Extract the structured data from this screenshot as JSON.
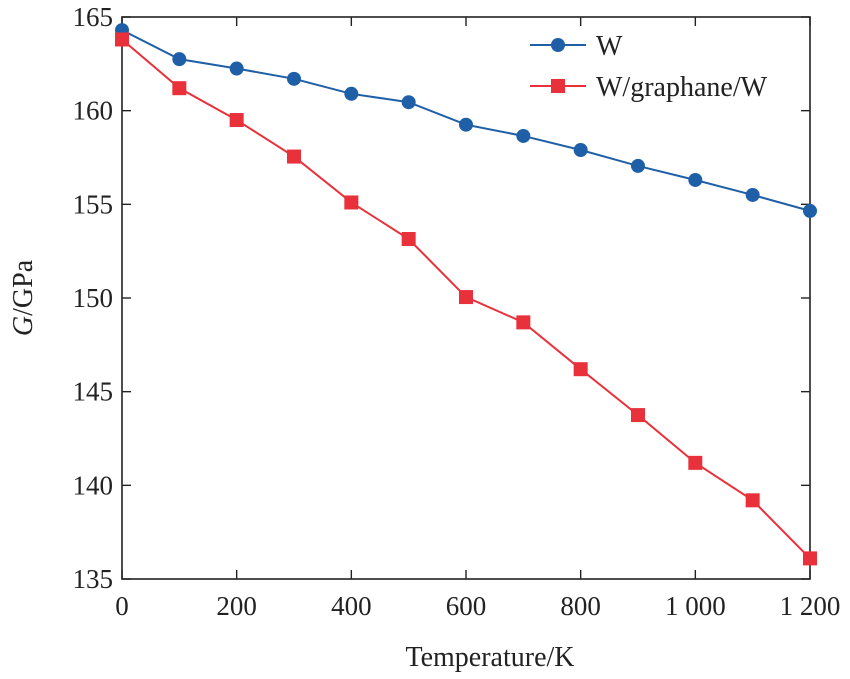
{
  "chart_data": {
    "type": "line",
    "x": [
      0,
      100,
      200,
      300,
      400,
      500,
      600,
      700,
      800,
      900,
      1000,
      1100,
      1200
    ],
    "xlabel": "Temperature/K",
    "ylabel_italic": "G",
    "ylabel_rest": "/GPa",
    "xlim": [
      0,
      1200
    ],
    "ylim": [
      135,
      165
    ],
    "xticks": [
      0,
      200,
      400,
      600,
      800,
      1000,
      1200
    ],
    "xtick_labels": [
      "0",
      "200",
      "400",
      "600",
      "800",
      "1 000",
      "1 200"
    ],
    "yticks": [
      135,
      140,
      145,
      150,
      155,
      160,
      165
    ],
    "ytick_labels": [
      "135",
      "140",
      "145",
      "150",
      "155",
      "160",
      "165"
    ],
    "grid": false,
    "legend_position": "top-right",
    "series": [
      {
        "name": "W",
        "marker": "circle",
        "color": "#1f5fa8",
        "values": [
          164.3,
          162.75,
          162.25,
          161.7,
          160.9,
          160.45,
          159.25,
          158.65,
          157.9,
          157.05,
          156.3,
          155.5,
          154.65
        ]
      },
      {
        "name": "W/graphane/W",
        "marker": "square",
        "color": "#e8313b",
        "values": [
          163.8,
          161.2,
          159.5,
          157.55,
          155.1,
          153.15,
          150.05,
          148.7,
          146.2,
          143.75,
          141.2,
          139.2,
          136.1
        ]
      }
    ]
  }
}
